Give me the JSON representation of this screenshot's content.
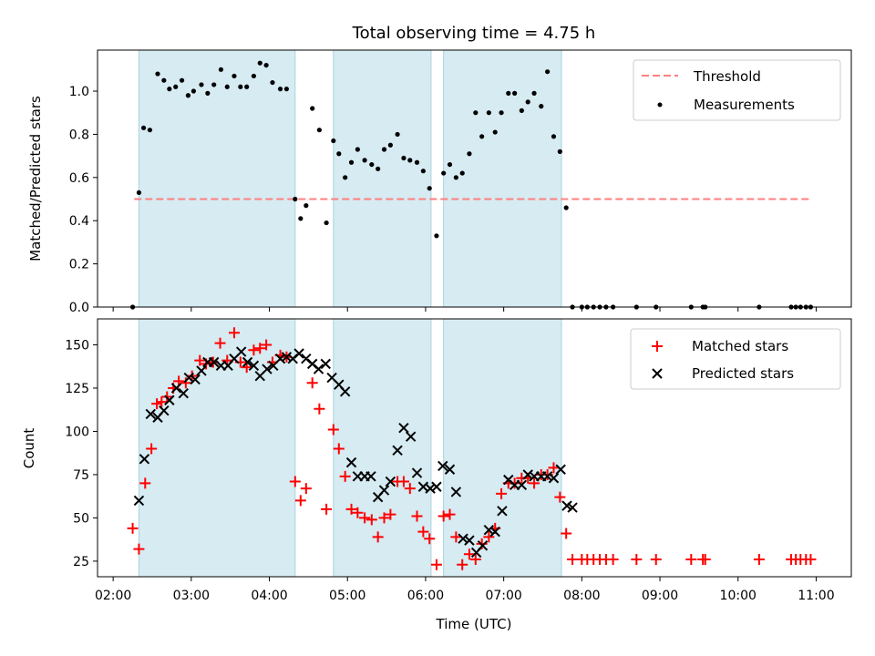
{
  "chart_data": {
    "title": "Total observing time = 4.75 h",
    "type": "scatter",
    "xlabel": "Time (UTC)",
    "x_tick_labels": [
      "02:00",
      "03:00",
      "04:00",
      "05:00",
      "06:00",
      "07:00",
      "08:00",
      "09:00",
      "10:00",
      "11:00"
    ],
    "x_ticks_hours": [
      2,
      3,
      4,
      5,
      6,
      7,
      8,
      9,
      10,
      11
    ],
    "xlim_hours": [
      1.8,
      11.45
    ],
    "shaded_intervals_hours": [
      [
        2.33,
        4.33
      ],
      [
        4.82,
        6.07
      ],
      [
        6.23,
        7.74
      ]
    ],
    "shade_color": "#add8e6",
    "panels": [
      {
        "ylabel": "Matched/Predicted stars",
        "ylim": [
          0,
          1.19
        ],
        "yticks": [
          0.0,
          0.2,
          0.4,
          0.6,
          0.8,
          1.0
        ],
        "ytick_labels": [
          "0.0",
          "0.2",
          "0.4",
          "0.6",
          "0.8",
          "1.0"
        ],
        "legend": {
          "location": "upper right",
          "entries": [
            "Threshold",
            "Measurements"
          ]
        },
        "threshold": {
          "name": "Threshold",
          "value": 0.5,
          "x_range_hours": [
            2.27,
            10.93
          ],
          "color": "#ff7f7f",
          "style": "dashed"
        },
        "series": [
          {
            "name": "Measurements",
            "marker": "dot",
            "color": "#000000",
            "x_hours": [
              2.25,
              2.33,
              2.39,
              2.47,
              2.57,
              2.65,
              2.72,
              2.8,
              2.88,
              2.96,
              3.03,
              3.13,
              3.21,
              3.29,
              3.38,
              3.46,
              3.55,
              3.63,
              3.71,
              3.8,
              3.88,
              3.96,
              4.04,
              4.14,
              4.22,
              4.33,
              4.4,
              4.47,
              4.55,
              4.64,
              4.73,
              4.82,
              4.89,
              4.97,
              5.05,
              5.13,
              5.22,
              5.31,
              5.39,
              5.47,
              5.55,
              5.64,
              5.72,
              5.8,
              5.89,
              5.97,
              6.05,
              6.14,
              6.23,
              6.31,
              6.39,
              6.47,
              6.56,
              6.64,
              6.72,
              6.81,
              6.89,
              6.97,
              7.06,
              7.14,
              7.23,
              7.31,
              7.39,
              7.48,
              7.56,
              7.64,
              7.72,
              7.8,
              7.88,
              8.0,
              8.07,
              8.15,
              8.23,
              8.31,
              8.4,
              8.7,
              8.95,
              9.4,
              9.55,
              9.58,
              10.27,
              10.68,
              10.74,
              10.8,
              10.87,
              10.93
            ],
            "y": [
              0.0,
              0.53,
              0.83,
              0.82,
              1.08,
              1.05,
              1.01,
              1.02,
              1.05,
              0.98,
              1.0,
              1.03,
              0.99,
              1.03,
              1.1,
              1.02,
              1.07,
              1.02,
              1.02,
              1.07,
              1.13,
              1.12,
              1.04,
              1.01,
              1.01,
              0.5,
              0.41,
              0.47,
              0.92,
              0.82,
              0.39,
              0.77,
              0.71,
              0.6,
              0.67,
              0.73,
              0.68,
              0.66,
              0.64,
              0.73,
              0.75,
              0.8,
              0.69,
              0.68,
              0.67,
              0.63,
              0.55,
              0.33,
              0.62,
              0.66,
              0.6,
              0.62,
              0.71,
              0.9,
              0.79,
              0.9,
              0.81,
              0.9,
              0.99,
              0.99,
              0.91,
              0.95,
              0.99,
              0.93,
              1.09,
              0.79,
              0.72,
              0.46,
              0.0,
              0.0,
              0.0,
              0.0,
              0.0,
              0.0,
              0.0,
              0.0,
              0.0,
              0.0,
              0.0,
              0.0,
              0.0,
              0.0,
              0.0,
              0.0,
              0.0,
              0.0
            ]
          }
        ]
      },
      {
        "ylabel": "Count",
        "ylim": [
          16,
          165
        ],
        "yticks": [
          25,
          50,
          75,
          100,
          125,
          150
        ],
        "ytick_labels": [
          "25",
          "50",
          "75",
          "100",
          "125",
          "150"
        ],
        "legend": {
          "location": "upper right",
          "entries": [
            "Matched stars",
            "Predicted stars"
          ]
        },
        "series": [
          {
            "name": "Matched stars",
            "marker": "plus",
            "color": "#ff0000",
            "x_hours": [
              2.25,
              2.33,
              2.41,
              2.49,
              2.56,
              2.62,
              2.69,
              2.77,
              2.84,
              2.93,
              3.01,
              3.11,
              3.19,
              3.28,
              3.37,
              3.46,
              3.55,
              3.63,
              3.71,
              3.8,
              3.88,
              3.96,
              4.04,
              4.14,
              4.22,
              4.33,
              4.4,
              4.47,
              4.55,
              4.64,
              4.73,
              4.82,
              4.89,
              4.97,
              5.05,
              5.13,
              5.22,
              5.31,
              5.39,
              5.47,
              5.55,
              5.64,
              5.72,
              5.8,
              5.89,
              5.97,
              6.05,
              6.14,
              6.23,
              6.31,
              6.39,
              6.47,
              6.56,
              6.64,
              6.72,
              6.81,
              6.89,
              6.97,
              7.06,
              7.14,
              7.23,
              7.31,
              7.39,
              7.48,
              7.56,
              7.64,
              7.72,
              7.8,
              7.88,
              8.0,
              8.07,
              8.15,
              8.23,
              8.31,
              8.4,
              8.7,
              8.95,
              9.4,
              9.55,
              9.58,
              10.27,
              10.68,
              10.74,
              10.8,
              10.87,
              10.93
            ],
            "y": [
              44,
              32,
              70,
              90,
              116,
              117,
              120,
              125,
              129,
              128,
              132,
              141,
              139,
              140,
              151,
              141,
              157,
              140,
              137,
              147,
              148,
              150,
              140,
              144,
              143,
              71,
              60,
              67,
              128,
              113,
              55,
              101,
              90,
              74,
              55,
              53,
              50,
              49,
              39,
              50,
              52,
              71,
              71,
              67,
              51,
              42,
              38,
              23,
              51,
              52,
              39,
              23,
              29,
              26,
              35,
              39,
              44,
              64,
              70,
              70,
              73,
              73,
              70,
              75,
              75,
              79,
              62,
              41,
              26,
              26,
              26,
              26,
              26,
              26,
              26,
              26,
              26,
              26,
              26,
              26,
              26,
              26,
              26,
              26,
              26,
              26
            ]
          },
          {
            "name": "Predicted stars",
            "marker": "x",
            "color": "#000000",
            "x_hours": [
              2.33,
              2.4,
              2.48,
              2.57,
              2.65,
              2.72,
              2.81,
              2.9,
              2.97,
              3.05,
              3.13,
              3.21,
              3.29,
              3.38,
              3.47,
              3.55,
              3.64,
              3.72,
              3.8,
              3.88,
              3.97,
              4.05,
              4.14,
              4.22,
              4.3,
              4.38,
              4.47,
              4.55,
              4.63,
              4.72,
              4.8,
              4.89,
              4.97,
              5.05,
              5.13,
              5.22,
              5.3,
              5.39,
              5.47,
              5.55,
              5.64,
              5.72,
              5.81,
              5.89,
              5.97,
              6.06,
              6.14,
              6.22,
              6.31,
              6.39,
              6.48,
              6.56,
              6.65,
              6.73,
              6.81,
              6.89,
              6.98,
              7.06,
              7.14,
              7.23,
              7.31,
              7.39,
              7.48,
              7.56,
              7.64,
              7.73,
              7.81,
              7.88
            ],
            "y": [
              60,
              84,
              110,
              108,
              112,
              118,
              125,
              122,
              131,
              130,
              135,
              140,
              140,
              138,
              138,
              142,
              146,
              140,
              138,
              132,
              136,
              138,
              142,
              143,
              142,
              145,
              142,
              139,
              136,
              139,
              131,
              127,
              123,
              82,
              74,
              74,
              74,
              62,
              66,
              71,
              89,
              102,
              97,
              76,
              68,
              67,
              68,
              80,
              78,
              65,
              38,
              37,
              30,
              34,
              43,
              42,
              54,
              72,
              69,
              69,
              75,
              74,
              74,
              74,
              73,
              78,
              57,
              56
            ]
          }
        ]
      }
    ]
  }
}
